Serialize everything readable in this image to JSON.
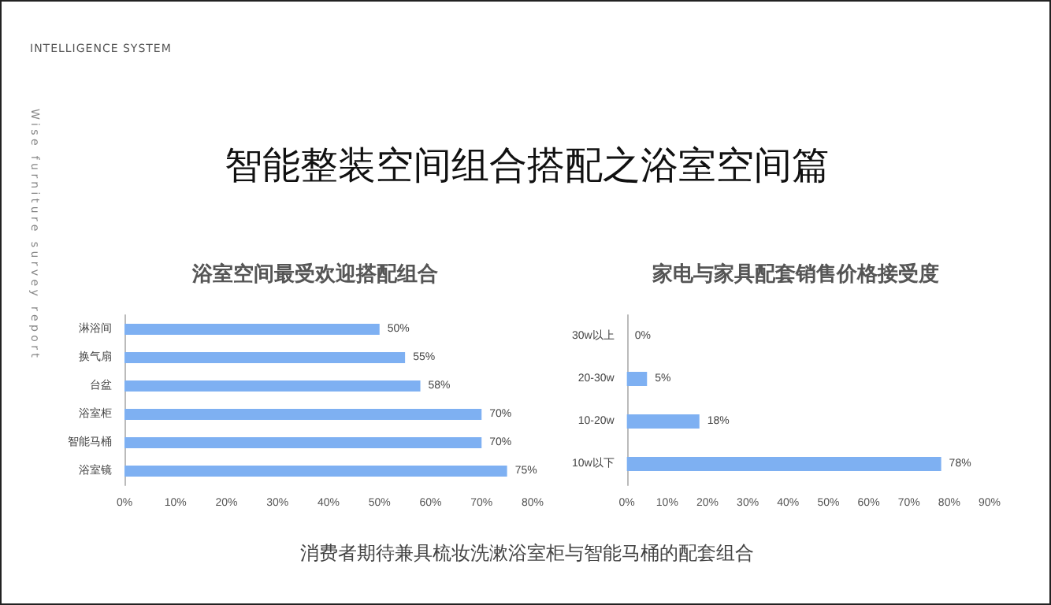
{
  "chart_data": [
    {
      "type": "other",
      "title": "智能整装空间组合搭配之浴室空间篇",
      "annotations": [
        "INTELLIGENCE SYSTEM",
        "Wise furniture survey report",
        "消费者期待兼具梳妆洗漱浴室柜与智能马桶的配套组合"
      ]
    },
    {
      "type": "bar",
      "orientation": "horizontal",
      "title": "浴室空间最受欢迎搭配组合",
      "categories": [
        "淋浴间",
        "换气扇",
        "台盆",
        "浴室柜",
        "智能马桶",
        "浴室镜"
      ],
      "values": [
        50,
        55,
        58,
        70,
        70,
        75
      ],
      "value_labels": [
        "50%",
        "55%",
        "58%",
        "70%",
        "70%",
        "75%"
      ],
      "color": "#7eb0f2",
      "xlim": [
        0,
        80
      ],
      "xticks": [
        {
          "value": 0,
          "label": "0%"
        },
        {
          "value": 10,
          "label": "10%"
        },
        {
          "value": 20,
          "label": "20%"
        },
        {
          "value": 30,
          "label": "30%"
        },
        {
          "value": 40,
          "label": "40%"
        },
        {
          "value": 50,
          "label": "50%"
        },
        {
          "value": 60,
          "label": "60%"
        },
        {
          "value": 70,
          "label": "70%"
        },
        {
          "value": 80,
          "label": "80%"
        }
      ],
      "grid": false
    },
    {
      "type": "bar",
      "orientation": "horizontal",
      "title": "家电与家具配套销售价格接受度",
      "categories": [
        "30w以上",
        "20-30w",
        "10-20w",
        "10w以下"
      ],
      "values": [
        0,
        5,
        18,
        78
      ],
      "value_labels": [
        "0%",
        "5%",
        "18%",
        "78%"
      ],
      "color": "#7eb0f2",
      "xlim": [
        0,
        90
      ],
      "xticks": [
        {
          "value": 0,
          "label": "0%"
        },
        {
          "value": 10,
          "label": "10%"
        },
        {
          "value": 20,
          "label": "20%"
        },
        {
          "value": 30,
          "label": "30%"
        },
        {
          "value": 40,
          "label": "40%"
        },
        {
          "value": 50,
          "label": "50%"
        },
        {
          "value": 60,
          "label": "60%"
        },
        {
          "value": 70,
          "label": "70%"
        },
        {
          "value": 80,
          "label": "80%"
        },
        {
          "value": 90,
          "label": "90%"
        }
      ],
      "grid": false
    }
  ]
}
